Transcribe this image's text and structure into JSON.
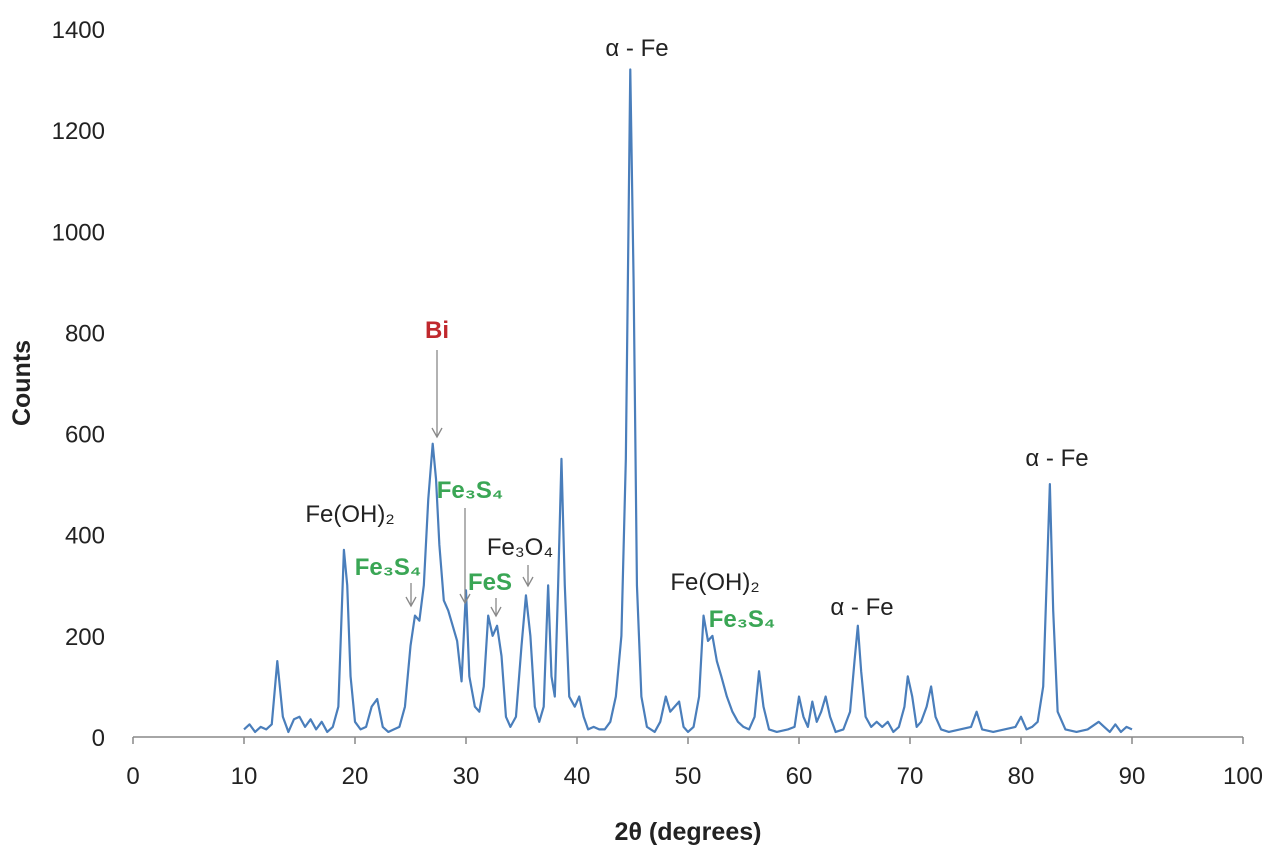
{
  "chart_data": {
    "type": "line",
    "x_label": "2θ (degrees)",
    "y_label": "Counts",
    "xlim": [
      0,
      100
    ],
    "xticks": [
      0,
      10,
      20,
      30,
      40,
      50,
      60,
      70,
      80,
      90,
      100
    ],
    "ylim": [
      0,
      1400
    ],
    "yticks": [
      0,
      200,
      400,
      600,
      800,
      1000,
      1200,
      1400
    ],
    "grid": false,
    "color": "#4a7ebb",
    "x": [
      10,
      10.5,
      11,
      11.5,
      12,
      12.5,
      13,
      13.5,
      14,
      14.5,
      15,
      15.5,
      16,
      16.5,
      17,
      17.5,
      18,
      18.5,
      19,
      19.3,
      19.6,
      20,
      20.5,
      21,
      21.5,
      22,
      22.5,
      23,
      23.5,
      24,
      24.5,
      25,
      25.4,
      25.8,
      26.2,
      26.6,
      27,
      27.3,
      27.6,
      28,
      28.4,
      28.8,
      29.2,
      29.6,
      30,
      30.3,
      30.8,
      31.2,
      31.6,
      32,
      32.4,
      32.8,
      33.2,
      33.6,
      34,
      34.5,
      35,
      35.4,
      35.8,
      36.2,
      36.6,
      37,
      37.4,
      37.7,
      38,
      38.3,
      38.6,
      38.9,
      39.3,
      39.8,
      40.2,
      40.6,
      41,
      41.5,
      42,
      42.5,
      43,
      43.5,
      44,
      44.4,
      44.8,
      45.1,
      45.4,
      45.8,
      46.3,
      47,
      47.5,
      48,
      48.4,
      48.8,
      49.2,
      49.6,
      50,
      50.5,
      51,
      51.4,
      51.8,
      52.2,
      52.6,
      53,
      53.5,
      54,
      54.5,
      55,
      55.5,
      56,
      56.4,
      56.8,
      57.3,
      58,
      59,
      59.6,
      60,
      60.4,
      60.8,
      61.2,
      61.6,
      62,
      62.4,
      62.8,
      63.3,
      64,
      64.6,
      65,
      65.3,
      65.6,
      66,
      66.5,
      67,
      67.5,
      68,
      68.5,
      69,
      69.5,
      69.8,
      70.2,
      70.6,
      71,
      71.5,
      71.9,
      72.3,
      72.8,
      73.5,
      74.5,
      75.5,
      76,
      76.5,
      77.5,
      78.5,
      79.5,
      80,
      80.5,
      81,
      81.5,
      82,
      82.3,
      82.6,
      82.9,
      83.3,
      84,
      85,
      86,
      87,
      87.5,
      88,
      88.5,
      89,
      89.5,
      90
    ],
    "values": [
      15,
      25,
      10,
      20,
      15,
      25,
      150,
      40,
      10,
      35,
      40,
      20,
      35,
      15,
      30,
      10,
      20,
      60,
      370,
      300,
      120,
      30,
      15,
      20,
      60,
      75,
      20,
      10,
      15,
      20,
      60,
      180,
      240,
      230,
      300,
      470,
      580,
      510,
      380,
      270,
      250,
      220,
      190,
      110,
      290,
      120,
      60,
      50,
      100,
      240,
      200,
      220,
      160,
      40,
      20,
      40,
      180,
      280,
      200,
      60,
      30,
      60,
      300,
      120,
      80,
      300,
      550,
      300,
      80,
      60,
      80,
      40,
      15,
      20,
      15,
      15,
      30,
      80,
      200,
      550,
      1320,
      900,
      300,
      80,
      20,
      10,
      30,
      80,
      50,
      60,
      70,
      20,
      10,
      20,
      80,
      240,
      190,
      200,
      150,
      120,
      80,
      50,
      30,
      20,
      15,
      40,
      130,
      60,
      15,
      10,
      15,
      20,
      80,
      40,
      20,
      70,
      30,
      50,
      80,
      40,
      10,
      15,
      50,
      150,
      220,
      130,
      40,
      20,
      30,
      20,
      30,
      10,
      20,
      60,
      120,
      80,
      20,
      30,
      60,
      100,
      40,
      15,
      10,
      15,
      20,
      50,
      15,
      10,
      15,
      20,
      40,
      15,
      20,
      30,
      100,
      300,
      500,
      250,
      50,
      15,
      10,
      15,
      30,
      20,
      10,
      25,
      10,
      20,
      15
    ],
    "annotations": [
      {
        "text": "α - Fe",
        "color": "#222222"
      },
      {
        "text": "Bi",
        "color": "#c0282d"
      },
      {
        "text": "Fe₃S₄",
        "color": "#3aa655"
      },
      {
        "text": "Fe(OH)₂",
        "color": "#222222"
      },
      {
        "text": "Fe₃O₄",
        "color": "#222222"
      },
      {
        "text": "Fe₃S₄",
        "color": "#3aa655"
      },
      {
        "text": "FeS",
        "color": "#3aa655"
      },
      {
        "text": "Fe(OH)₂",
        "color": "#222222"
      },
      {
        "text": "Fe₃S₄",
        "color": "#3aa655"
      },
      {
        "text": "α - Fe",
        "color": "#222222"
      },
      {
        "text": "α - Fe",
        "color": "#222222"
      }
    ]
  }
}
